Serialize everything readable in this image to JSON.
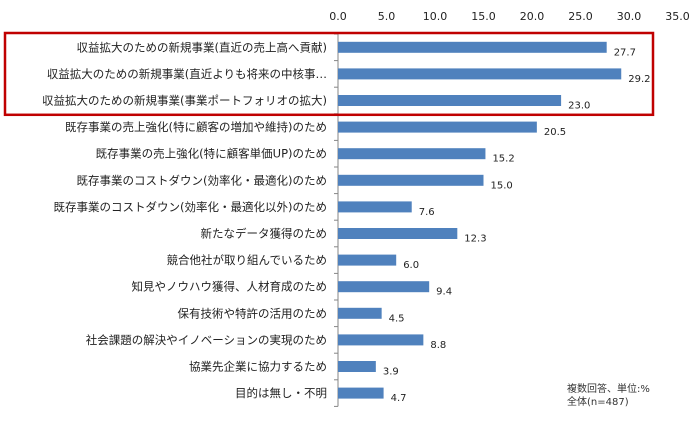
{
  "chart_data": {
    "type": "bar",
    "orientation": "horizontal",
    "categories": [
      "収益拡大のための新規事業(直近の売上高へ貢献)",
      "収益拡大のための新規事業(直近よりも将来の中核事…",
      "収益拡大のための新規事業(事業ポートフォリオの拡大)",
      "既存事業の売上強化(特に顧客の増加や維持)のため",
      "既存事業の売上強化(特に顧客単価UP)のため",
      "既存事業のコストダウン(効率化・最適化)のため",
      "既存事業のコストダウン(効率化・最適化以外)のため",
      "新たなデータ獲得のため",
      "競合他社が取り組んでいるため",
      "知見やノウハウ獲得、人材育成のため",
      "保有技術や特許の活用のため",
      "社会課題の解決やイノベーションの実現のため",
      "協業先企業に協力するため",
      "目的は無し・不明"
    ],
    "values": [
      27.7,
      29.2,
      23.0,
      20.5,
      15.2,
      15.0,
      7.6,
      12.3,
      6.0,
      9.4,
      4.5,
      8.8,
      3.9,
      4.7
    ],
    "value_labels": [
      "27.7",
      "29.2",
      "23.0",
      "20.5",
      "15.2",
      "15.0",
      "7.6",
      "12.3",
      "6.0",
      "9.4",
      "4.5",
      "8.8",
      "3.9",
      "4.7"
    ],
    "xlim": [
      0,
      35
    ],
    "x_ticks": [
      "0.0",
      "5.0",
      "10.0",
      "15.0",
      "20.0",
      "25.0",
      "30.0",
      "35.0"
    ],
    "axis_position": "top",
    "grid": false,
    "highlight_box_rows": [
      0,
      1,
      2
    ],
    "note": [
      "複数回答、単位:%",
      "全体(n=487)"
    ],
    "colors": {
      "bar": "#4f81bd",
      "highlight_box": "#c00000",
      "axis": "#868686"
    }
  }
}
